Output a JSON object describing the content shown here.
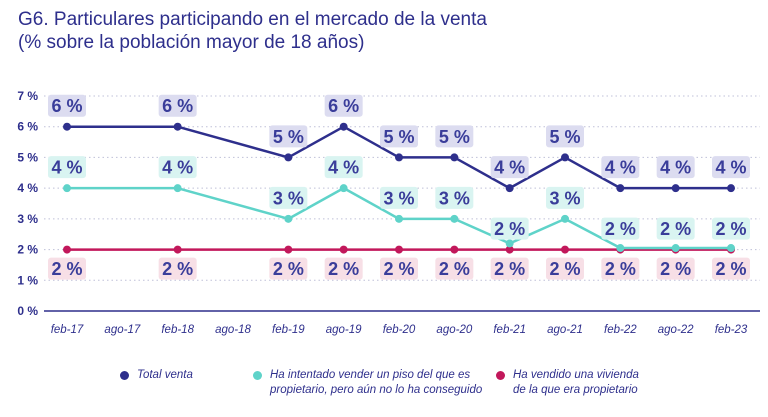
{
  "title": {
    "line1": "G6. Particulares participando en el mercado de la venta",
    "line2": "(% sobre la población mayor de 18 años)"
  },
  "chart_data": {
    "type": "line",
    "categories": [
      "feb-17",
      "ago-17",
      "feb-18",
      "ago-18",
      "feb-19",
      "ago-19",
      "feb-20",
      "ago-20",
      "feb-21",
      "ago-21",
      "feb-22",
      "ago-22",
      "feb-23"
    ],
    "ylim": [
      0,
      7
    ],
    "y_ticks": [
      "0 %",
      "1 %",
      "2 %",
      "3 %",
      "4 %",
      "5 %",
      "6 %",
      "7 %"
    ],
    "grid": "horizontal-dotted",
    "legend_position": "bottom",
    "series": [
      {
        "name": "Total venta",
        "color": "#2e2f8c",
        "label_bg": "#dcdcf0",
        "label_color": "#3a3d9a",
        "label_position": "above",
        "values": [
          6.0,
          null,
          6.0,
          null,
          5.0,
          6.0,
          5.0,
          5.0,
          4.0,
          5.0,
          4.0,
          4.0,
          4.0
        ],
        "labels": [
          "6 %",
          null,
          "6 %",
          null,
          "5 %",
          "6 %",
          "5 %",
          "5 %",
          "4 %",
          "5 %",
          "4 %",
          "4 %",
          "4 %"
        ]
      },
      {
        "name": "Ha intentado vender un piso del que es propietario, pero aún no lo ha conseguido",
        "color": "#5fd3c9",
        "label_bg": "#d9f4f1",
        "label_color": "#3a3d9a",
        "label_position": "mixed",
        "values": [
          4.0,
          null,
          4.0,
          null,
          3.0,
          4.0,
          3.0,
          3.0,
          2.2,
          3.0,
          2.05,
          2.05,
          2.05
        ],
        "labels": [
          "4 %",
          null,
          "4 %",
          null,
          "3 %",
          "4 %",
          "3 %",
          "3 %",
          "2 %",
          "3 %",
          "2 %",
          "2 %",
          "2 %"
        ]
      },
      {
        "name": "Ha vendido una vivienda de la que era propietario",
        "color": "#c2185b",
        "label_bg": "#f7dfe6",
        "label_color": "#3a3d9a",
        "label_position": "below",
        "values": [
          2.0,
          null,
          2.0,
          null,
          2.0,
          2.0,
          2.0,
          2.0,
          2.0,
          2.0,
          2.0,
          2.0,
          2.0
        ],
        "labels": [
          "2 %",
          null,
          "2 %",
          null,
          "2 %",
          "2 %",
          "2 %",
          "2 %",
          "2 %",
          "2 %",
          "2 %",
          "2 %",
          "2 %"
        ]
      }
    ]
  },
  "legend": [
    {
      "line1": "Total venta",
      "line2": ""
    },
    {
      "line1": "Ha intentado vender un piso del que es",
      "line2": "propietario, pero aún no lo ha conseguido"
    },
    {
      "line1": "Ha vendido una vivienda",
      "line2": "de la que era propietario"
    }
  ]
}
